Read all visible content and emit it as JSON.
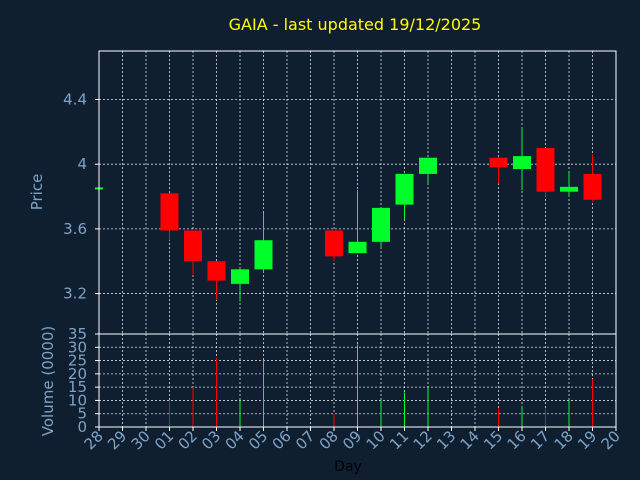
{
  "chart_data": {
    "type": "candlestick",
    "title": "GAIA - last updated 19/12/2025",
    "xlabel": "Day",
    "price_panel": {
      "ylabel": "Price",
      "ylim": [
        2.95,
        4.7
      ],
      "yticks": [
        3.2,
        3.6,
        4,
        4.4
      ],
      "ytick_labels": [
        "3.2",
        "3.6",
        "4",
        "4.4"
      ]
    },
    "volume_panel": {
      "ylabel": "Volume (0000)",
      "ylim": [
        0,
        35
      ],
      "yticks": [
        0,
        5,
        10,
        15,
        20,
        25,
        30,
        35
      ],
      "ytick_labels": [
        "0",
        "5",
        "10",
        "15",
        "20",
        "25",
        "30",
        "35"
      ]
    },
    "days": [
      "28",
      "29",
      "30",
      "01",
      "02",
      "03",
      "04",
      "05",
      "06",
      "07",
      "08",
      "09",
      "10",
      "11",
      "12",
      "13",
      "14",
      "15",
      "16",
      "17",
      "18",
      "19",
      "20"
    ],
    "candles": [
      {
        "day": "28",
        "open": 3.85,
        "high": 3.85,
        "low": 3.85,
        "close": 3.85,
        "volume": 0
      },
      {
        "day": "01",
        "open": 3.82,
        "high": 3.82,
        "low": 3.53,
        "close": 3.59,
        "volume": 10
      },
      {
        "day": "02",
        "open": 3.59,
        "high": 3.59,
        "low": 3.32,
        "close": 3.4,
        "volume": 15
      },
      {
        "day": "03",
        "open": 3.4,
        "high": 3.4,
        "low": 3.16,
        "close": 3.28,
        "volume": 26
      },
      {
        "day": "04",
        "open": 3.26,
        "high": 3.36,
        "low": 3.15,
        "close": 3.35,
        "volume": 10
      },
      {
        "day": "05",
        "open": 3.35,
        "high": 3.7,
        "low": 3.33,
        "close": 3.53,
        "volume": 25
      },
      {
        "day": "08",
        "open": 3.59,
        "high": 3.59,
        "low": 3.4,
        "close": 3.43,
        "volume": 5
      },
      {
        "day": "09",
        "open": 3.45,
        "high": 3.84,
        "low": 3.45,
        "close": 3.52,
        "volume": 31
      },
      {
        "day": "10",
        "open": 3.52,
        "high": 3.73,
        "low": 3.48,
        "close": 3.73,
        "volume": 10
      },
      {
        "day": "11",
        "open": 3.75,
        "high": 3.94,
        "low": 3.66,
        "close": 3.94,
        "volume": 13
      },
      {
        "day": "12",
        "open": 3.94,
        "high": 4.04,
        "low": 3.88,
        "close": 4.04,
        "volume": 15
      },
      {
        "day": "15",
        "open": 4.04,
        "high": 4.04,
        "low": 3.88,
        "close": 3.98,
        "volume": 7
      },
      {
        "day": "16",
        "open": 3.97,
        "high": 4.23,
        "low": 3.84,
        "close": 4.05,
        "volume": 8
      },
      {
        "day": "17",
        "open": 4.1,
        "high": 4.1,
        "low": 3.8,
        "close": 3.83,
        "volume": 7
      },
      {
        "day": "18",
        "open": 3.83,
        "high": 3.95,
        "low": 3.8,
        "close": 3.86,
        "volume": 10
      },
      {
        "day": "19",
        "open": 3.94,
        "high": 4.06,
        "low": 3.77,
        "close": 3.78,
        "volume": 18
      }
    ],
    "colors": {
      "background": "#0f1f30",
      "up": "#00ff2a",
      "down": "#ff0000",
      "grid": "#ffffff",
      "axis_text": "#7fa3c7",
      "title": "#ffff00",
      "xlabel": "#000000"
    },
    "grid": true
  }
}
